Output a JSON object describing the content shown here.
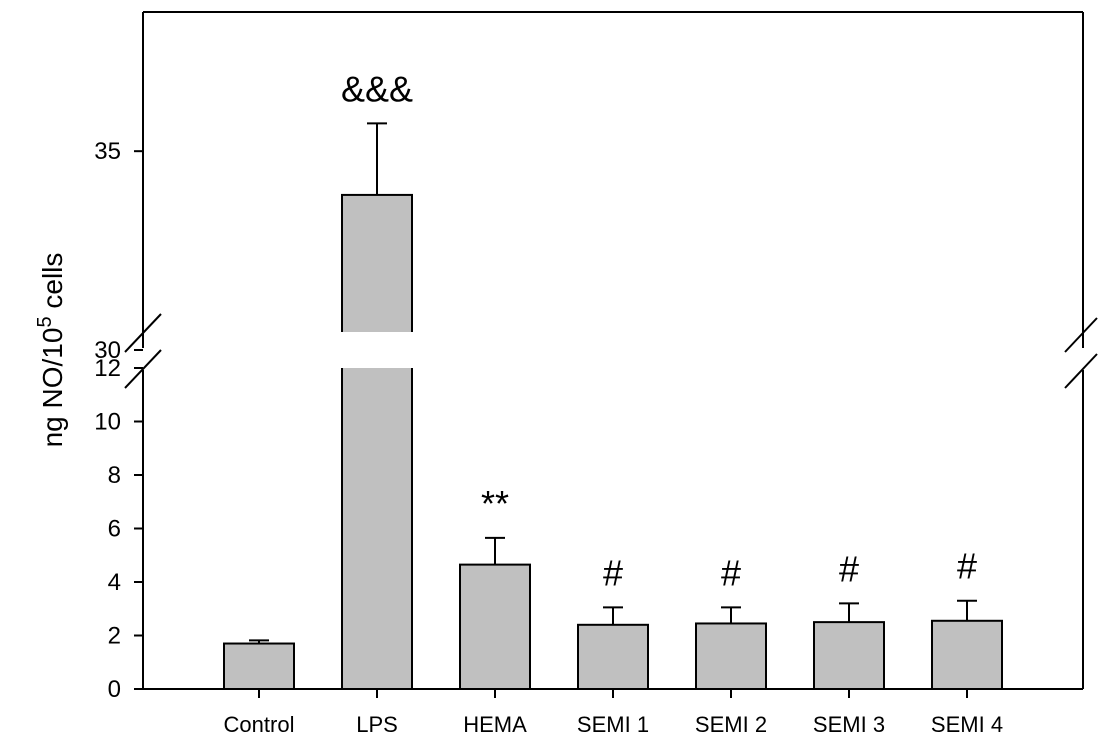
{
  "chart_data": {
    "type": "bar",
    "categories": [
      "Control",
      "LPS",
      "HEMA",
      "SEMI 1",
      "SEMI 2",
      "SEMI 3",
      "SEMI 4"
    ],
    "values": [
      1.7,
      33.9,
      4.65,
      2.4,
      2.45,
      2.5,
      2.55
    ],
    "errors": [
      0.12,
      1.8,
      1.0,
      0.65,
      0.6,
      0.7,
      0.75
    ],
    "annotations": [
      "",
      "&&&",
      "**",
      "#",
      "#",
      "#",
      "#"
    ],
    "ylabel": {
      "main": "ng NO/10",
      "superscript": "5",
      "end": " cells"
    },
    "y_break": {
      "lower_range": [
        0,
        12
      ],
      "upper_range": [
        30,
        38.5
      ]
    },
    "y_ticks_lower": [
      0,
      2,
      4,
      6,
      8,
      10,
      12
    ],
    "y_ticks_upper": [
      30,
      35
    ],
    "bar_color": "#c0c0c0",
    "grid": false,
    "legend": "none"
  }
}
